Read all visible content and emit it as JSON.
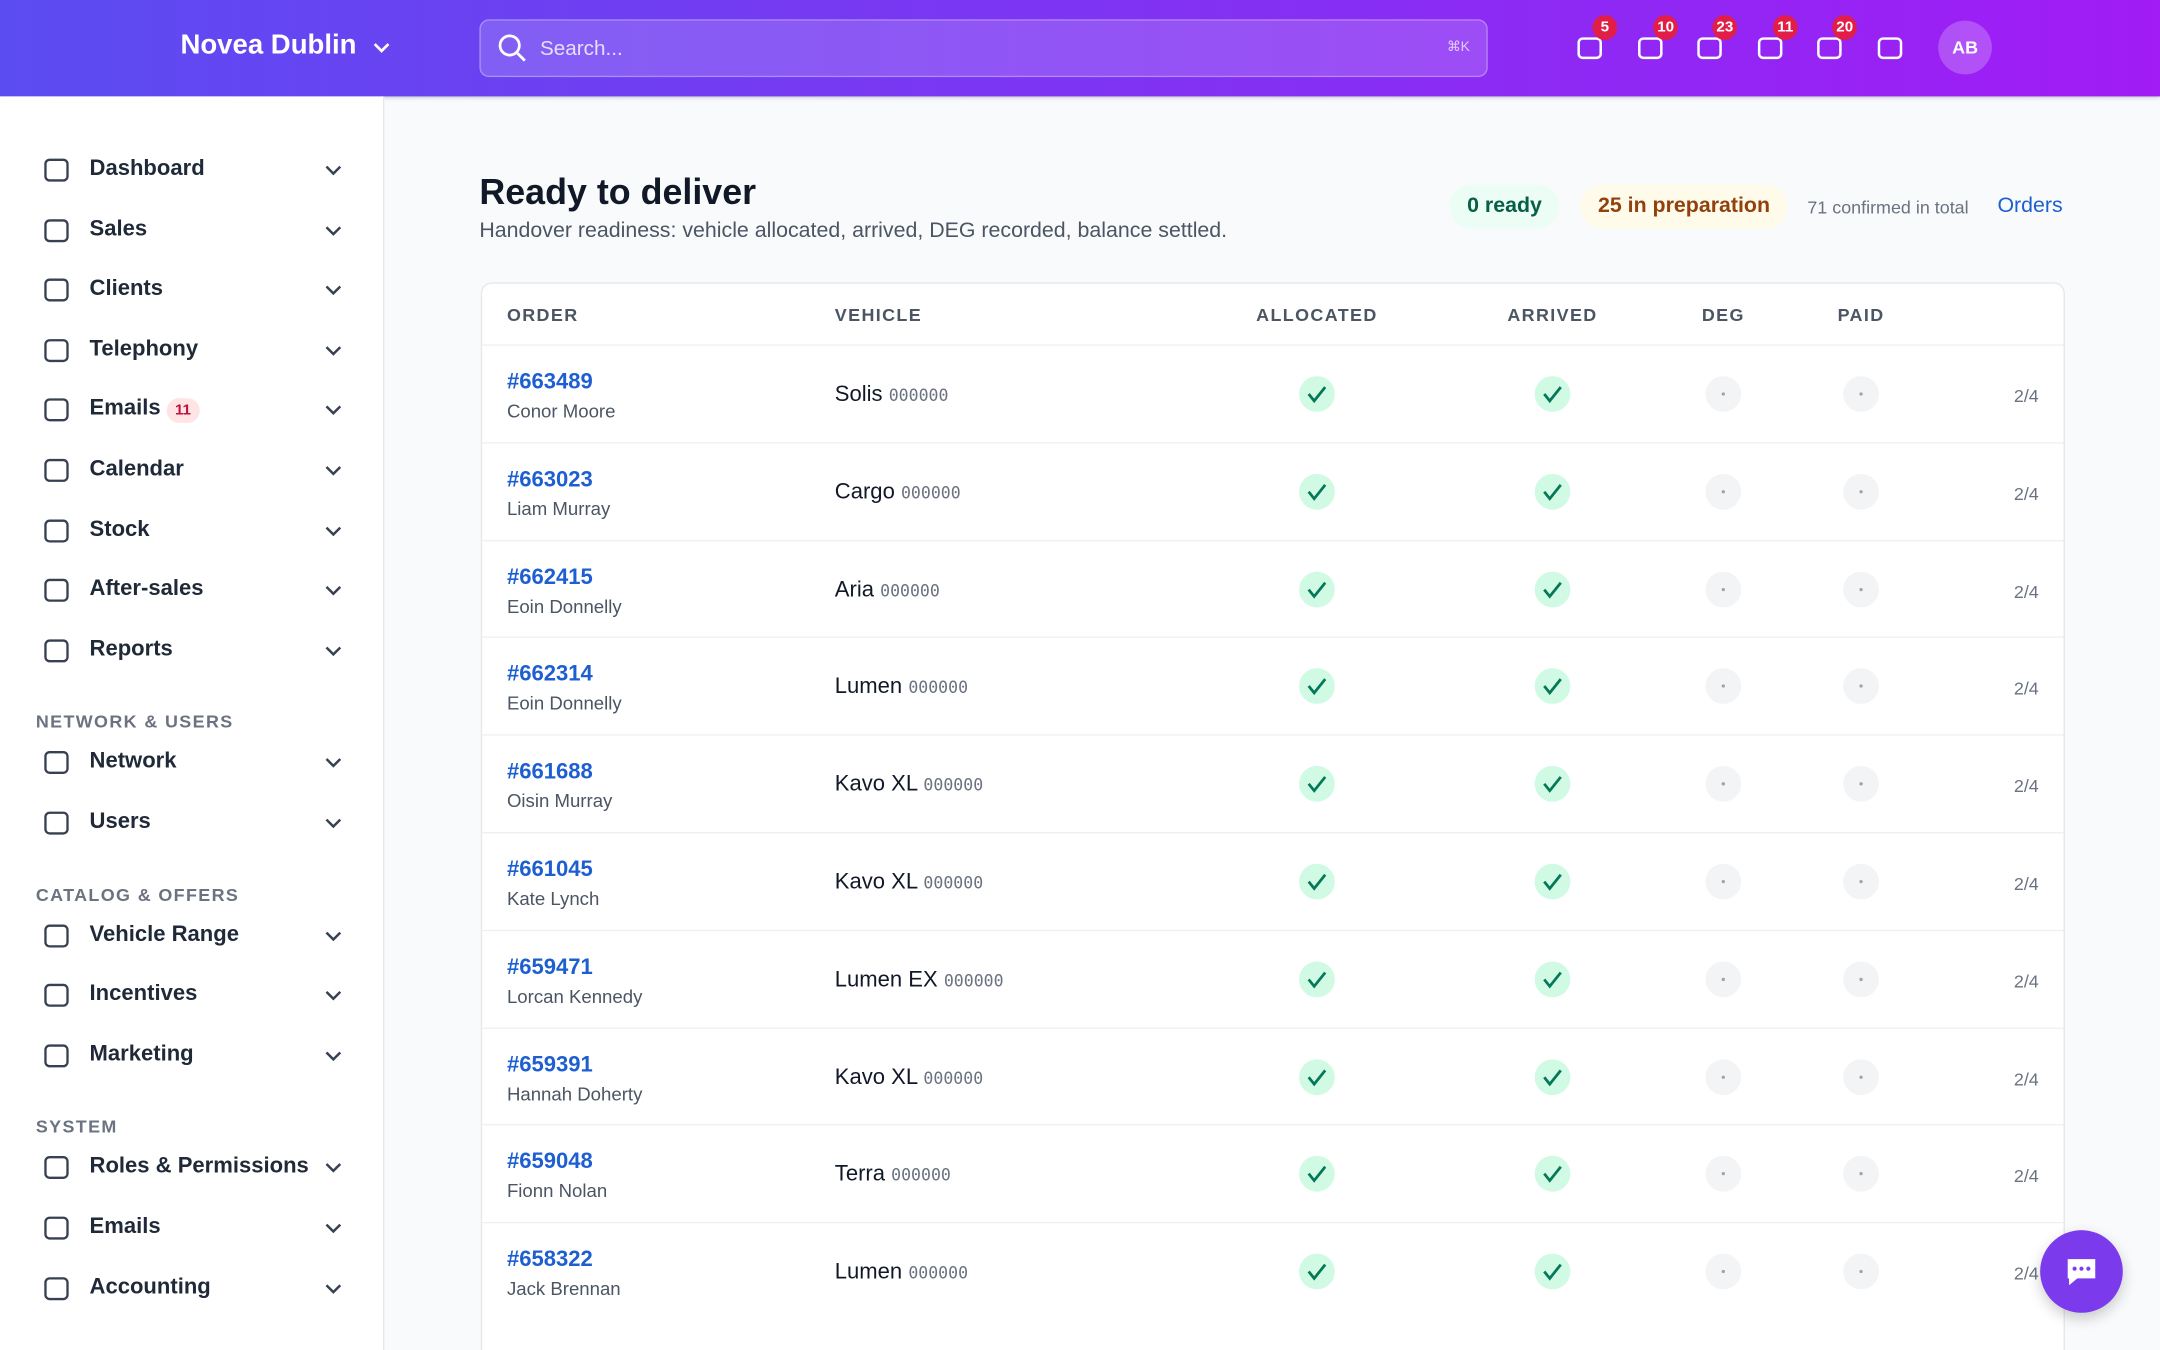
{
  "header": {
    "brand": "Novea Dublin",
    "search_placeholder": "Search...",
    "shortcut": "⌘K",
    "badges": [
      5,
      10,
      23,
      11,
      20
    ],
    "avatar": "AB"
  },
  "sidebar": {
    "groups": [
      {
        "title": null,
        "items": [
          {
            "label": "Dashboard"
          },
          {
            "label": "Sales"
          },
          {
            "label": "Clients"
          },
          {
            "label": "Telephony"
          },
          {
            "label": "Emails",
            "badge": 11
          },
          {
            "label": "Calendar"
          },
          {
            "label": "Stock"
          },
          {
            "label": "After-sales"
          },
          {
            "label": "Reports"
          }
        ]
      },
      {
        "title": "NETWORK & USERS",
        "items": [
          {
            "label": "Network"
          },
          {
            "label": "Users"
          }
        ]
      },
      {
        "title": "CATALOG & OFFERS",
        "items": [
          {
            "label": "Vehicle Range"
          },
          {
            "label": "Incentives"
          },
          {
            "label": "Marketing"
          }
        ]
      },
      {
        "title": "SYSTEM",
        "items": [
          {
            "label": "Roles & Permissions"
          },
          {
            "label": "Emails"
          },
          {
            "label": "Accounting"
          }
        ]
      }
    ]
  },
  "main": {
    "title": "Ready to deliver",
    "subtitle": "Handover readiness: vehicle allocated, arrived, DEG recorded, balance settled.",
    "ready": "0 ready",
    "preparation": "25 in preparation",
    "confirmed": "71 confirmed in total",
    "orders_link": "Orders"
  },
  "table": {
    "columns": [
      "ORDER",
      "VEHICLE",
      "ALLOCATED",
      "ARRIVED",
      "DEG",
      "PAID"
    ],
    "rows": [
      {
        "order": "#663489",
        "client": "Conor Moore",
        "vehicle": "Solis",
        "code": "000000",
        "progress": "2/4"
      },
      {
        "order": "#663023",
        "client": "Liam Murray",
        "vehicle": "Cargo",
        "code": "000000",
        "progress": "2/4"
      },
      {
        "order": "#662415",
        "client": "Eoin Donnelly",
        "vehicle": "Aria",
        "code": "000000",
        "progress": "2/4"
      },
      {
        "order": "#662314",
        "client": "Eoin Donnelly",
        "vehicle": "Lumen",
        "code": "000000",
        "progress": "2/4"
      },
      {
        "order": "#661688",
        "client": "Oisin Murray",
        "vehicle": "Kavo XL",
        "code": "000000",
        "progress": "2/4"
      },
      {
        "order": "#661045",
        "client": "Kate Lynch",
        "vehicle": "Kavo XL",
        "code": "000000",
        "progress": "2/4"
      },
      {
        "order": "#659471",
        "client": "Lorcan Kennedy",
        "vehicle": "Lumen EX",
        "code": "000000",
        "progress": "2/4"
      },
      {
        "order": "#659391",
        "client": "Hannah Doherty",
        "vehicle": "Kavo XL",
        "code": "000000",
        "progress": "2/4"
      },
      {
        "order": "#659048",
        "client": "Fionn Nolan",
        "vehicle": "Terra",
        "code": "000000",
        "progress": "2/4"
      },
      {
        "order": "#658322",
        "client": "Jack Brennan",
        "vehicle": "Lumen",
        "code": "000000",
        "progress": "2/4"
      }
    ]
  }
}
